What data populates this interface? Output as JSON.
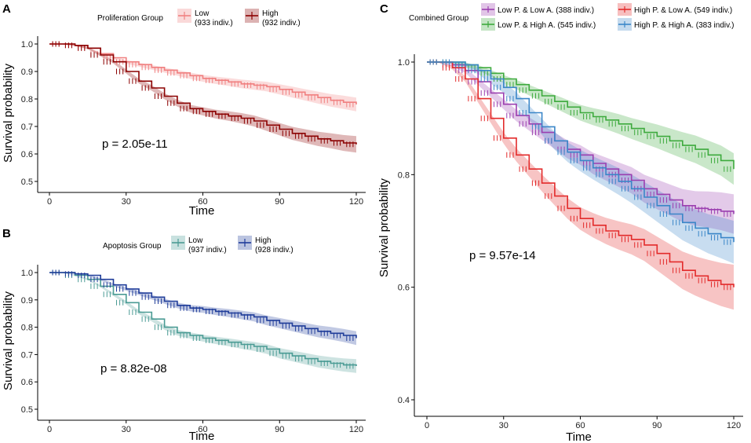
{
  "chart_data": [
    {
      "type": "line",
      "panel_label": "A",
      "xlabel": "Time",
      "ylabel": "Survival probability",
      "xlim": [
        0,
        120
      ],
      "ylim": [
        0.5,
        1.0
      ],
      "xticks": [
        "0",
        "30",
        "60",
        "90",
        "120"
      ],
      "yticks": [
        "0.5",
        "0.6",
        "0.7",
        "0.8",
        "0.9",
        "1.0"
      ],
      "legend_title": "Proliferation Group",
      "pvalue": "p = 2.05e-11",
      "series": [
        {
          "name": "Low",
          "count": "(933 indiv.)",
          "color": "#f08080",
          "band": 0.025,
          "x": [
            0,
            5,
            10,
            15,
            20,
            25,
            30,
            35,
            40,
            45,
            50,
            55,
            60,
            65,
            70,
            75,
            80,
            85,
            90,
            95,
            100,
            105,
            110,
            115,
            120
          ],
          "y": [
            1.0,
            1.0,
            0.995,
            0.985,
            0.965,
            0.95,
            0.935,
            0.925,
            0.915,
            0.905,
            0.895,
            0.885,
            0.875,
            0.868,
            0.862,
            0.855,
            0.85,
            0.845,
            0.835,
            0.825,
            0.815,
            0.805,
            0.795,
            0.788,
            0.78
          ]
        },
        {
          "name": "High",
          "count": "(932 indiv.)",
          "color": "#8b0000",
          "band": 0.03,
          "x": [
            0,
            5,
            10,
            15,
            20,
            25,
            30,
            35,
            40,
            45,
            50,
            55,
            60,
            65,
            70,
            75,
            80,
            85,
            90,
            95,
            100,
            105,
            110,
            115,
            120
          ],
          "y": [
            1.0,
            1.0,
            0.995,
            0.985,
            0.96,
            0.935,
            0.9,
            0.865,
            0.84,
            0.81,
            0.785,
            0.765,
            0.755,
            0.745,
            0.738,
            0.73,
            0.72,
            0.705,
            0.69,
            0.675,
            0.665,
            0.655,
            0.648,
            0.64,
            0.635
          ]
        }
      ]
    },
    {
      "type": "line",
      "panel_label": "B",
      "xlabel": "Time",
      "ylabel": "Survival probability",
      "xlim": [
        0,
        120
      ],
      "ylim": [
        0.5,
        1.0
      ],
      "xticks": [
        "0",
        "30",
        "60",
        "90",
        "120"
      ],
      "yticks": [
        "0.5",
        "0.6",
        "0.7",
        "0.8",
        "0.9",
        "1.0"
      ],
      "legend_title": "Apoptosis Group",
      "pvalue": "p = 8.82e-08",
      "series": [
        {
          "name": "Low",
          "count": "(937 indiv.)",
          "color": "#4a9b94",
          "band": 0.025,
          "x": [
            0,
            5,
            10,
            15,
            20,
            25,
            30,
            35,
            40,
            45,
            50,
            55,
            60,
            65,
            70,
            75,
            80,
            85,
            90,
            95,
            100,
            105,
            110,
            115,
            120
          ],
          "y": [
            1.0,
            1.0,
            0.99,
            0.975,
            0.95,
            0.92,
            0.89,
            0.855,
            0.83,
            0.8,
            0.78,
            0.77,
            0.76,
            0.752,
            0.745,
            0.737,
            0.73,
            0.72,
            0.705,
            0.695,
            0.685,
            0.675,
            0.668,
            0.662,
            0.658
          ]
        },
        {
          "name": "High",
          "count": "(928 indiv.)",
          "color": "#1f3c99",
          "band": 0.025,
          "x": [
            0,
            5,
            10,
            15,
            20,
            25,
            30,
            35,
            40,
            45,
            50,
            55,
            60,
            65,
            70,
            75,
            80,
            85,
            90,
            95,
            100,
            105,
            110,
            115,
            120
          ],
          "y": [
            1.0,
            1.0,
            0.995,
            0.99,
            0.975,
            0.955,
            0.94,
            0.925,
            0.91,
            0.895,
            0.88,
            0.87,
            0.865,
            0.858,
            0.852,
            0.845,
            0.838,
            0.825,
            0.815,
            0.805,
            0.795,
            0.785,
            0.778,
            0.77,
            0.76
          ]
        }
      ]
    },
    {
      "type": "line",
      "panel_label": "C",
      "xlabel": "Time",
      "ylabel": "Survival probability",
      "xlim": [
        0,
        120
      ],
      "ylim": [
        0.4,
        1.0
      ],
      "xticks": [
        "0",
        "30",
        "60",
        "90",
        "120"
      ],
      "yticks": [
        "0.4",
        "0.6",
        "0.8",
        "1.0"
      ],
      "legend_title": "Combined Group",
      "pvalue": "p = 9.57e-14",
      "series": [
        {
          "name": "Low P. & Low A. (388 indiv.)",
          "color": "#9b3fb0",
          "band": 0.035,
          "x": [
            0,
            5,
            10,
            15,
            20,
            25,
            30,
            35,
            40,
            45,
            50,
            55,
            60,
            65,
            70,
            75,
            80,
            85,
            90,
            95,
            100,
            105,
            110,
            115,
            120
          ],
          "y": [
            1.0,
            1.0,
            0.995,
            0.985,
            0.965,
            0.945,
            0.925,
            0.905,
            0.89,
            0.875,
            0.86,
            0.845,
            0.835,
            0.82,
            0.81,
            0.8,
            0.79,
            0.775,
            0.765,
            0.755,
            0.745,
            0.74,
            0.738,
            0.735,
            0.73
          ]
        },
        {
          "name": "Low P. & High A. (545 indiv.)",
          "color": "#3daa3d",
          "band": 0.028,
          "x": [
            0,
            5,
            10,
            15,
            20,
            25,
            30,
            35,
            40,
            45,
            50,
            55,
            60,
            65,
            70,
            75,
            80,
            85,
            90,
            95,
            100,
            105,
            110,
            115,
            120
          ],
          "y": [
            1.0,
            1.0,
            1.0,
            0.995,
            0.99,
            0.98,
            0.97,
            0.96,
            0.95,
            0.94,
            0.93,
            0.92,
            0.91,
            0.903,
            0.897,
            0.89,
            0.882,
            0.875,
            0.868,
            0.86,
            0.852,
            0.845,
            0.835,
            0.825,
            0.81
          ]
        },
        {
          "name": "High P. & Low A. (549 indiv.)",
          "color": "#e32b2b",
          "band": 0.04,
          "x": [
            0,
            5,
            10,
            15,
            20,
            25,
            30,
            35,
            40,
            45,
            50,
            55,
            60,
            65,
            70,
            75,
            80,
            85,
            90,
            95,
            100,
            105,
            110,
            115,
            120
          ],
          "y": [
            1.0,
            1.0,
            0.99,
            0.97,
            0.935,
            0.9,
            0.865,
            0.835,
            0.81,
            0.785,
            0.762,
            0.74,
            0.722,
            0.71,
            0.7,
            0.692,
            0.685,
            0.675,
            0.66,
            0.645,
            0.63,
            0.62,
            0.612,
            0.605,
            0.6
          ]
        },
        {
          "name": "High P. & High A. (383 indiv.)",
          "color": "#3a86c8",
          "band": 0.038,
          "x": [
            0,
            5,
            10,
            15,
            20,
            25,
            30,
            35,
            40,
            45,
            50,
            55,
            60,
            65,
            70,
            75,
            80,
            85,
            90,
            95,
            100,
            105,
            110,
            115,
            120
          ],
          "y": [
            1.0,
            1.0,
            1.0,
            0.995,
            0.985,
            0.97,
            0.955,
            0.935,
            0.91,
            0.885,
            0.86,
            0.84,
            0.825,
            0.812,
            0.8,
            0.788,
            0.775,
            0.76,
            0.745,
            0.73,
            0.715,
            0.705,
            0.695,
            0.688,
            0.68
          ]
        }
      ]
    }
  ]
}
